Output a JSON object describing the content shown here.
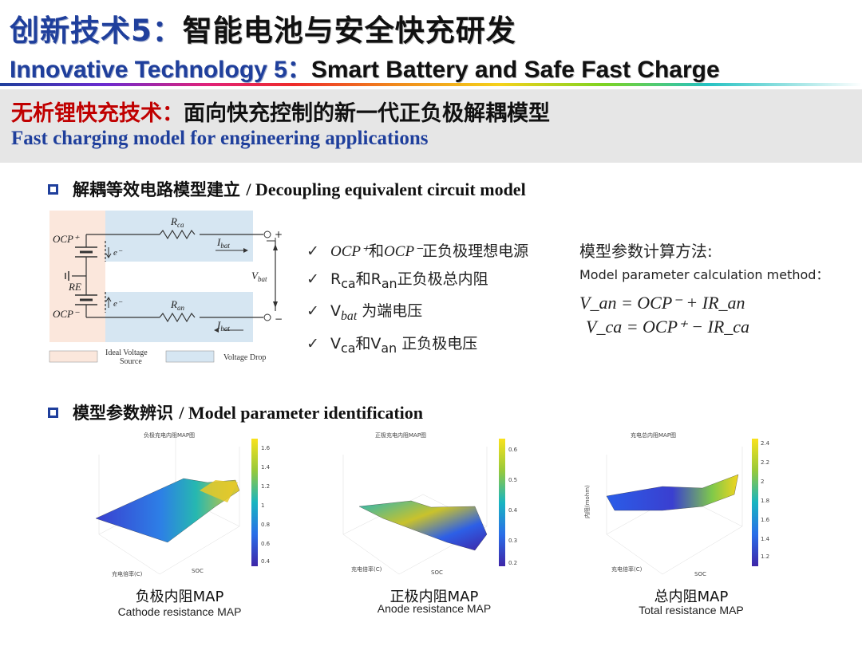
{
  "header": {
    "title_cn_blue": "创新技术5：",
    "title_cn_black": "智能电池与安全快充研发",
    "title_en_blue": "Innovative Technology 5：",
    "title_en_black": "Smart Battery and Safe Fast Charge"
  },
  "banner": {
    "cn_red": "无析锂快充技术：",
    "cn_black": "面向快充控制的新一代正负极解耦模型",
    "en": "Fast charging model for engineering applications"
  },
  "section1": {
    "cn": "解耦等效电路模型建立",
    "en": "/ Decoupling equivalent circuit model"
  },
  "circuit": {
    "ocp_plus": "OCP⁺",
    "ocp_minus": "OCP⁻",
    "re": "RE",
    "r_ca": "R",
    "r_ca_sub": "ca",
    "r_an": "R",
    "r_an_sub": "an",
    "i_bat": "I",
    "i_bat_sub": "bat",
    "v_bat": "V",
    "v_bat_sub": "bat",
    "electron": "e⁻",
    "plus": "+",
    "minus": "−",
    "legend_ideal_1": "Ideal Voltage",
    "legend_ideal_2": "Source",
    "legend_drop": "Voltage Drop"
  },
  "checks": [
    {
      "a": "OCP⁺",
      "b": "和",
      "c": "OCP⁻",
      "d": "正负极理想电源"
    },
    {
      "a": "R",
      "a_sub": "ca",
      "b": "和",
      "c": "R",
      "c_sub": "an",
      "d": "正负极总内阻"
    },
    {
      "a": "V",
      "a_sub": "bat",
      "d": " 为端电压"
    },
    {
      "a": "V",
      "a_sub": "ca",
      "b": "和",
      "c": "V",
      "c_sub": "an",
      "d": " 正负极电压"
    }
  ],
  "check_mark": "✓",
  "method": {
    "title_cn": "模型参数计算方法:",
    "title_en": "Model parameter calculation method：",
    "eq1": "V_an = OCP⁻ + IR_an",
    "eq2": "V_ca = OCP⁺ − IR_ca"
  },
  "section2": {
    "cn": "模型参数辨识",
    "en": "/ Model parameter identification"
  },
  "maps": [
    {
      "cn": "负极内阻MAP",
      "en": "Cathode resistance MAP",
      "plot_title": "负极充电内阻MAP图",
      "soc_label": "SOC",
      "rate_label": "充电倍率(C)",
      "colorbar": [
        "1.6",
        "1.4",
        "1.2",
        "1",
        "0.8",
        "0.6",
        "0.4"
      ]
    },
    {
      "cn": "正极内阻MAP",
      "en": "Anode resistance MAP",
      "plot_title": "正极充电内阻MAP图",
      "soc_label": "SOC",
      "rate_label": "充电倍率(C)",
      "colorbar": [
        "0.6",
        "0.5",
        "0.4",
        "0.3",
        "0.2"
      ]
    },
    {
      "cn": "总内阻MAP",
      "en": "Total resistance MAP",
      "plot_title": "充电总内阻MAP图",
      "soc_label": "SOC",
      "rate_label": "充电倍率(C)",
      "z_label": "内阻(mohm)",
      "colorbar": [
        "2.4",
        "2.2",
        "2",
        "1.8",
        "1.6",
        "1.4",
        "1.2"
      ]
    }
  ],
  "colors": {
    "accent_blue": "#1f3f9c",
    "banner_red": "#c00000",
    "banner_bg": "#e6e6e6"
  }
}
